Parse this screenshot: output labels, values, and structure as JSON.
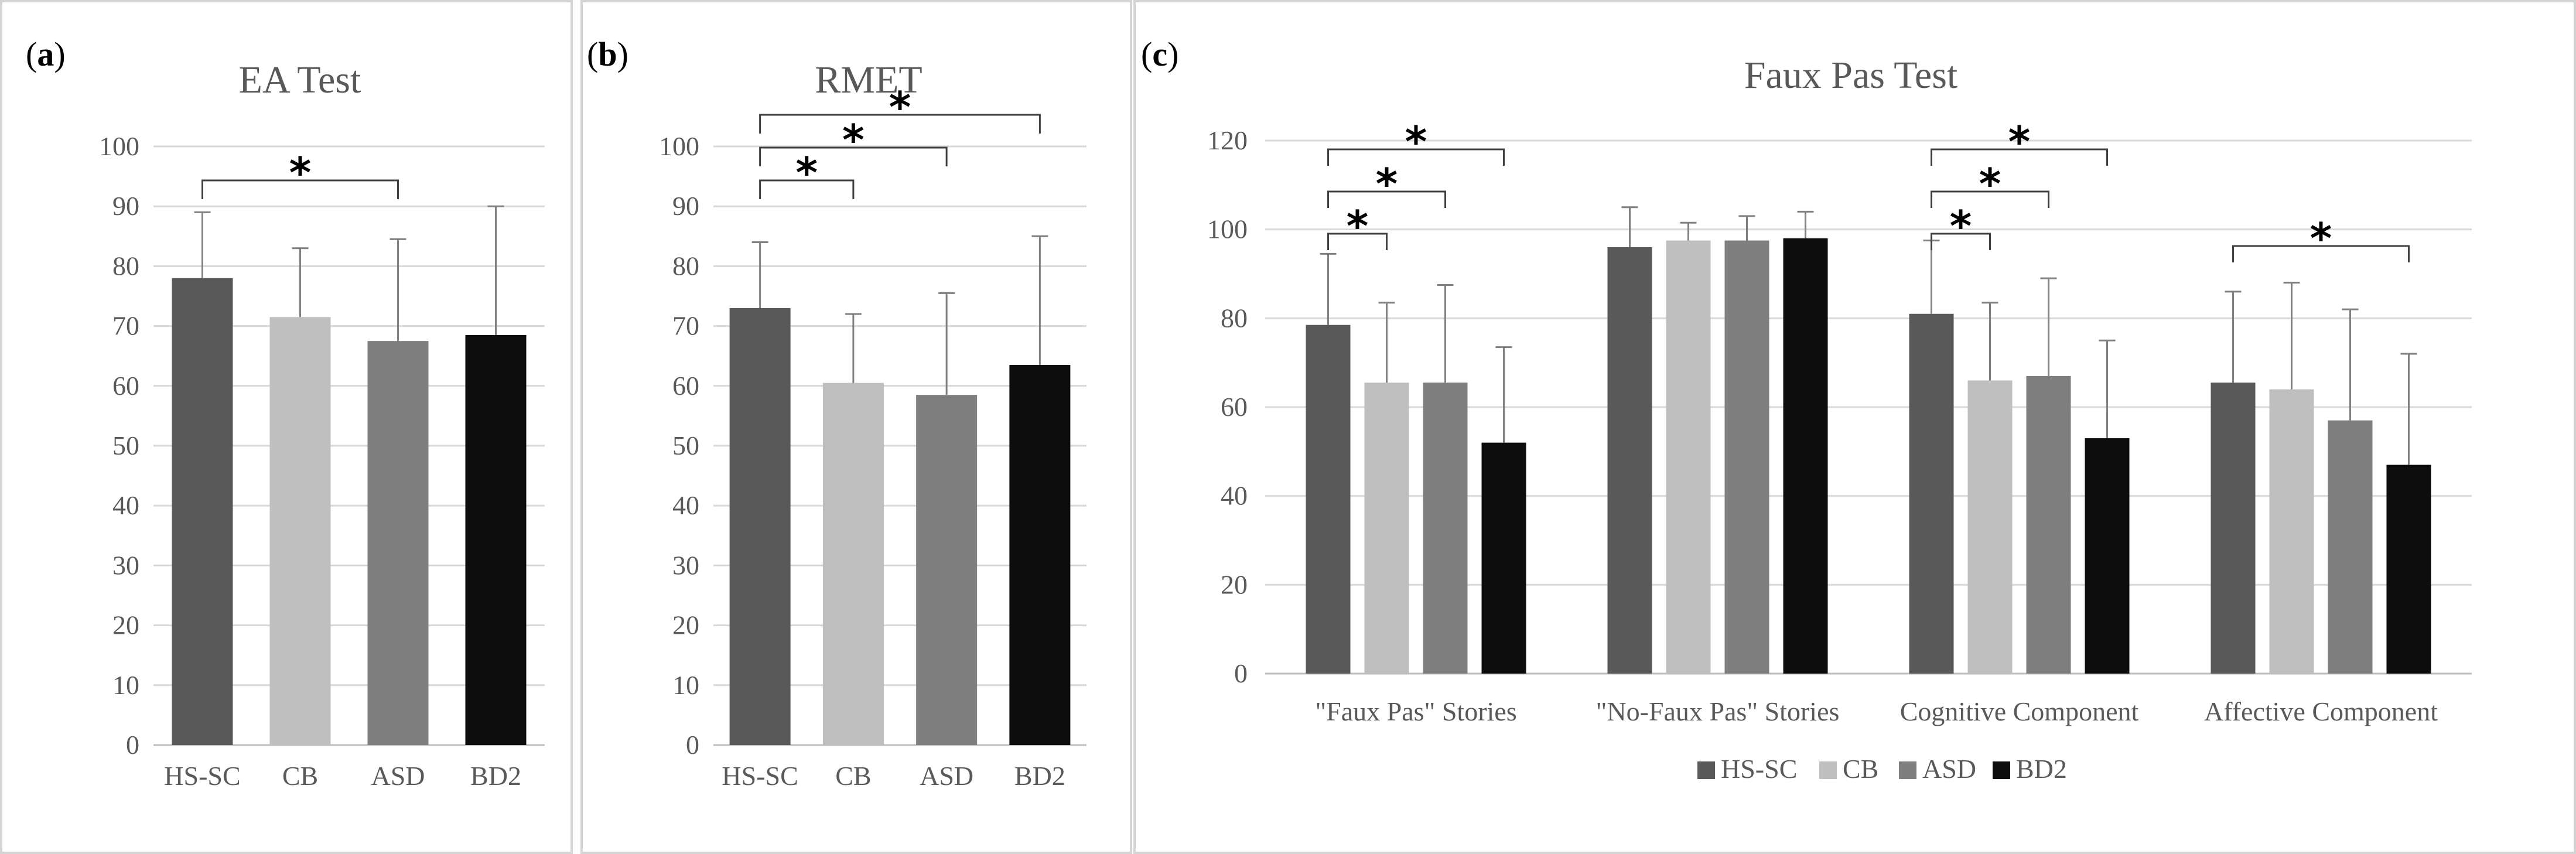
{
  "colors": {
    "HS-SC": "#595959",
    "CB": "#bfbfbf",
    "ASD": "#7f7f7f",
    "BD2": "#0d0d0d",
    "grid": "#d9d9d9",
    "axis": "#bfbfbf",
    "error": "#808080",
    "bracket": "#404040"
  },
  "chart_data": [
    {
      "id": "a",
      "panel_label": "a",
      "type": "bar",
      "title": "EA Test",
      "categories": [
        "HS-SC",
        "CB",
        "ASD",
        "BD2"
      ],
      "values": [
        78,
        71.5,
        67.5,
        68.5
      ],
      "errors": [
        11,
        11.5,
        17,
        21.5
      ],
      "ylim": [
        0,
        100
      ],
      "yticks": [
        0,
        10,
        20,
        30,
        40,
        50,
        60,
        70,
        80,
        90,
        100
      ],
      "significance": [
        {
          "from": 0,
          "to": 2,
          "level": 1,
          "label": "*"
        }
      ]
    },
    {
      "id": "b",
      "panel_label": "b",
      "type": "bar",
      "title": "RMET",
      "categories": [
        "HS-SC",
        "CB",
        "ASD",
        "BD2"
      ],
      "values": [
        73,
        60.5,
        58.5,
        63.5
      ],
      "errors": [
        11,
        11.5,
        17,
        21.5
      ],
      "ylim": [
        0,
        100
      ],
      "yticks": [
        0,
        10,
        20,
        30,
        40,
        50,
        60,
        70,
        80,
        90,
        100
      ],
      "significance": [
        {
          "from": 0,
          "to": 1,
          "level": 1,
          "label": "*"
        },
        {
          "from": 0,
          "to": 2,
          "level": 2,
          "label": "*"
        },
        {
          "from": 0,
          "to": 3,
          "level": 3,
          "label": "*"
        }
      ]
    },
    {
      "id": "c",
      "panel_label": "c",
      "type": "bar",
      "title": "Faux Pas Test",
      "categories": [
        "\"Faux Pas\" Stories",
        "\"No-Faux Pas\" Stories",
        "Cognitive Component",
        "Affective Component"
      ],
      "series": [
        {
          "name": "HS-SC",
          "values": [
            78.5,
            96,
            81,
            65.5
          ],
          "errors": [
            16,
            9,
            16.5,
            20.5
          ]
        },
        {
          "name": "CB",
          "values": [
            65.5,
            97.5,
            66,
            64
          ],
          "errors": [
            18,
            4,
            17.5,
            24
          ]
        },
        {
          "name": "ASD",
          "values": [
            65.5,
            97.5,
            67,
            57
          ],
          "errors": [
            22,
            5.5,
            22,
            25
          ]
        },
        {
          "name": "BD2",
          "values": [
            52,
            98,
            53,
            47
          ],
          "errors": [
            21.5,
            6,
            22,
            25
          ]
        }
      ],
      "ylim": [
        0,
        120
      ],
      "yticks": [
        0,
        20,
        40,
        60,
        80,
        100,
        120
      ],
      "legend": [
        "HS-SC",
        "CB",
        "ASD",
        "BD2"
      ],
      "legend_position": "bottom",
      "significance": [
        {
          "group": 0,
          "from": 0,
          "to": 1,
          "level": 1,
          "label": "*"
        },
        {
          "group": 0,
          "from": 0,
          "to": 2,
          "level": 2,
          "label": "*"
        },
        {
          "group": 0,
          "from": 0,
          "to": 3,
          "level": 3,
          "label": "*"
        },
        {
          "group": 2,
          "from": 0,
          "to": 1,
          "level": 1,
          "label": "*"
        },
        {
          "group": 2,
          "from": 0,
          "to": 2,
          "level": 2,
          "label": "*"
        },
        {
          "group": 2,
          "from": 0,
          "to": 3,
          "level": 3,
          "label": "*"
        },
        {
          "group": 3,
          "from": 0,
          "to": 3,
          "level": 1,
          "label": "*"
        }
      ]
    }
  ]
}
